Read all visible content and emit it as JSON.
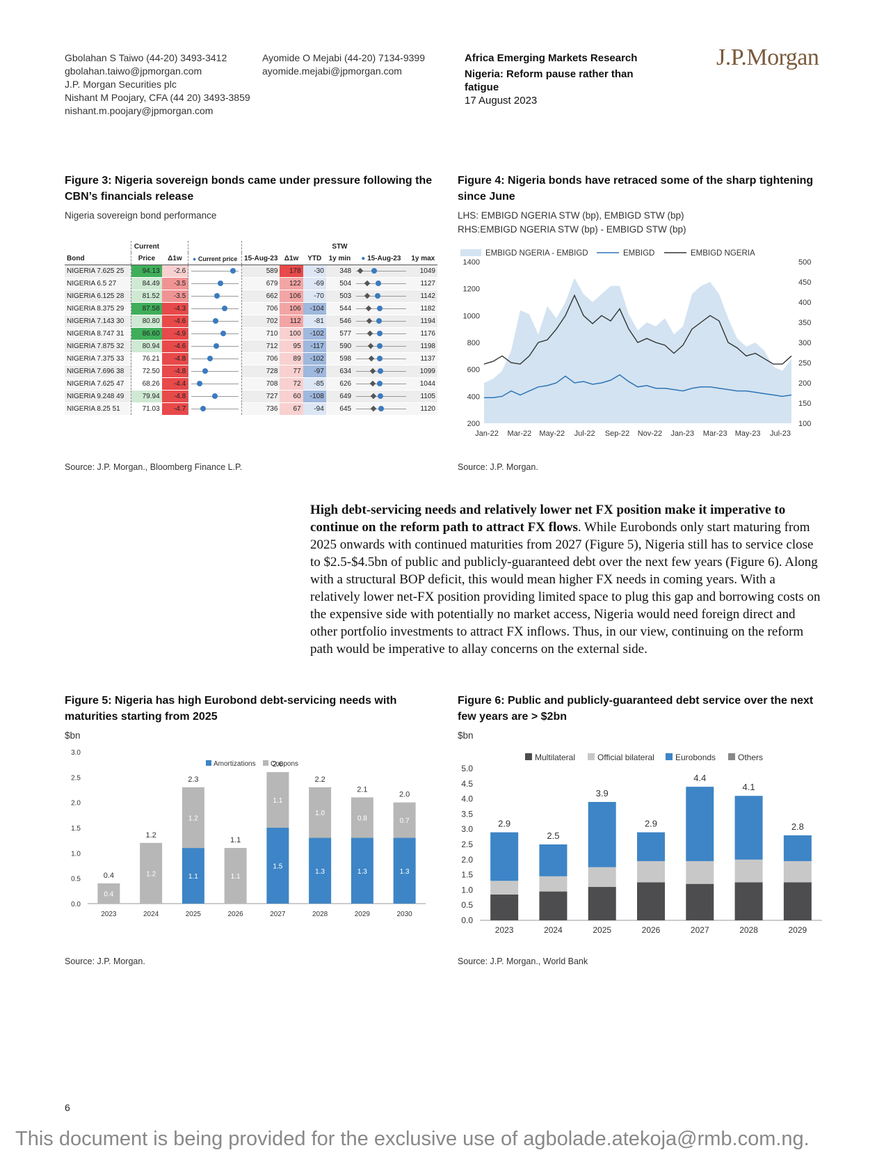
{
  "header": {
    "contacts_left": [
      "Gbolahan S Taiwo  (44-20) 3493-3412",
      "gbolahan.taiwo@jpmorgan.com",
      "J.P. Morgan Securities plc",
      "Nishant M Poojary, CFA  (44 20) 3493-3859",
      "nishant.m.poojary@jpmorgan.com"
    ],
    "contacts_mid": [
      "Ayomide O Mejabi  (44-20) 7134-9399",
      "ayomide.mejabi@jpmorgan.com"
    ],
    "research_title": "Africa Emerging Markets Research",
    "report_title": "Nigeria: Reform pause rather than fatigue",
    "date": "17 August 2023",
    "logo": "J.P.Morgan"
  },
  "fig3": {
    "title": "Figure 3: Nigeria sovereign bonds came under pressure following the CBN’s financials release",
    "subtitle": "Nigeria sovereign bond performance",
    "source": "Source: J.P. Morgan., Bloomberg Finance L.P.",
    "headers": {
      "bond": "Bond",
      "current": "Current",
      "price": "Price",
      "d1w": "Δ1w",
      "current_price": "Current price",
      "stw": "STW",
      "date": "15-Aug-23",
      "d1w_stw": "Δ1w",
      "ytd": "YTD",
      "min": "1y min",
      "dot_label": "15-Aug-23",
      "max": "1y max"
    },
    "rows": [
      {
        "bond": "NIGERIA 7.625 25",
        "price": "94.13",
        "d1w": "-2.6",
        "stw": "589",
        "dstw": "178",
        "ytd": "-30",
        "min": "348",
        "max": "1049"
      },
      {
        "bond": "NIGERIA 6.5 27",
        "price": "84.49",
        "d1w": "-3.5",
        "stw": "679",
        "dstw": "122",
        "ytd": "-69",
        "min": "504",
        "max": "1127"
      },
      {
        "bond": "NIGERIA 6.125 28",
        "price": "81.52",
        "d1w": "-3.5",
        "stw": "662",
        "dstw": "106",
        "ytd": "-70",
        "min": "503",
        "max": "1142"
      },
      {
        "bond": "NIGERIA 8.375 29",
        "price": "87.58",
        "d1w": "-4.3",
        "stw": "706",
        "dstw": "106",
        "ytd": "-104",
        "min": "544",
        "max": "1182"
      },
      {
        "bond": "NIGERIA 7.143 30",
        "price": "80.80",
        "d1w": "-4.6",
        "stw": "702",
        "dstw": "112",
        "ytd": "-81",
        "min": "546",
        "max": "1194"
      },
      {
        "bond": "NIGERIA 8.747 31",
        "price": "86.60",
        "d1w": "-4.9",
        "stw": "710",
        "dstw": "100",
        "ytd": "-102",
        "min": "577",
        "max": "1176"
      },
      {
        "bond": "NIGERIA 7.875 32",
        "price": "80.94",
        "d1w": "-4.6",
        "stw": "712",
        "dstw": "95",
        "ytd": "-117",
        "min": "590",
        "max": "1198"
      },
      {
        "bond": "NIGERIA 7.375 33",
        "price": "76.21",
        "d1w": "-4.8",
        "stw": "706",
        "dstw": "89",
        "ytd": "-102",
        "min": "598",
        "max": "1137"
      },
      {
        "bond": "NIGERIA 7.696 38",
        "price": "72.50",
        "d1w": "-4.8",
        "stw": "728",
        "dstw": "77",
        "ytd": "-97",
        "min": "634",
        "max": "1099"
      },
      {
        "bond": "NIGERIA 7.625 47",
        "price": "68.26",
        "d1w": "-4.4",
        "stw": "708",
        "dstw": "72",
        "ytd": "-85",
        "min": "626",
        "max": "1044"
      },
      {
        "bond": "NIGERIA 9.248 49",
        "price": "79.94",
        "d1w": "-4.8",
        "stw": "727",
        "dstw": "60",
        "ytd": "-108",
        "min": "649",
        "max": "1105"
      },
      {
        "bond": "NIGERIA 8.25 51",
        "price": "71.03",
        "d1w": "-4.7",
        "stw": "736",
        "dstw": "67",
        "ytd": "-94",
        "min": "645",
        "max": "1120"
      }
    ],
    "colors": {
      "green_dark": "#3fae5a",
      "green_light": "#cfe9d3",
      "red_dark": "#e8494a",
      "red_light": "#f8d0d0",
      "blue_cell": "#9fb8dd",
      "blue_light": "#dde6f4",
      "dot": "#3a7bbf",
      "diamond": "#555555"
    }
  },
  "fig4": {
    "title": "Figure 4: Nigeria bonds have retraced some of the sharp tightening since June",
    "subtitle1": "LHS: EMBIGD NGERIA STW (bp), EMBIGD STW (bp)",
    "subtitle2": "RHS:EMBIGD NGERIA STW (bp) - EMBIGD STW (bp)",
    "source": "Source: J.P. Morgan.",
    "chart_data": {
      "type": "line",
      "legend": [
        "EMBIGD NGERIA - EMBIGD",
        "EMBIGD",
        "EMBIGD NGERIA"
      ],
      "x_ticks": [
        "Jan-22",
        "Mar-22",
        "May-22",
        "Jul-22",
        "Sep-22",
        "Nov-22",
        "Jan-23",
        "Mar-23",
        "May-23",
        "Jul-23"
      ],
      "y_left_ticks": [
        "1400",
        "1200",
        "1000",
        "800",
        "600",
        "400",
        "200"
      ],
      "y_right_ticks": [
        "500",
        "450",
        "400",
        "350",
        "300",
        "250",
        "200",
        "150",
        "100"
      ],
      "ylim_left": [
        200,
        1400
      ],
      "ylim_right": [
        100,
        500
      ],
      "embigd_ngeria": [
        640,
        660,
        700,
        650,
        640,
        700,
        800,
        820,
        900,
        1000,
        1150,
        1000,
        940,
        1000,
        960,
        1050,
        900,
        800,
        830,
        800,
        780,
        720,
        780,
        900,
        950,
        1000,
        960,
        800,
        760,
        700,
        720,
        680,
        640,
        640,
        700
      ],
      "embigd": [
        390,
        390,
        400,
        440,
        410,
        440,
        470,
        480,
        500,
        550,
        500,
        510,
        490,
        500,
        520,
        560,
        510,
        470,
        480,
        460,
        460,
        450,
        440,
        460,
        470,
        470,
        460,
        450,
        440,
        440,
        430,
        420,
        410,
        400,
        410
      ],
      "spread": [
        200,
        210,
        230,
        280,
        380,
        370,
        320,
        390,
        360,
        400,
        460,
        420,
        400,
        420,
        440,
        440,
        370,
        330,
        350,
        340,
        360,
        320,
        340,
        420,
        440,
        450,
        420,
        360,
        310,
        290,
        300,
        280,
        240,
        230,
        260
      ],
      "colors": {
        "area": "#d3e3f1",
        "embigd": "#2e75b6",
        "ngeria": "#333333"
      }
    }
  },
  "body": {
    "lead": "High debt-servicing needs and relatively lower net FX position make it imperative to continue on the reform path to attract FX flows",
    "text": ". While Eurobonds only start maturing from 2025 onwards with continued maturities from 2027 (Figure 5), Nigeria still has to service close to $2.5-$4.5bn of public and publicly-guaranteed debt over the next few years (Figure 6). Along with a structural BOP deficit, this would mean higher FX needs in coming years. With a relatively lower net-FX position providing limited space to plug this gap and borrowing costs on the expensive side with potentially no market access, Nigeria would need foreign direct and other portfolio investments to attract FX inflows. Thus, in our view, continuing on the reform path would be imperative to allay concerns on the external side."
  },
  "fig5": {
    "title": "Figure 5: Nigeria has high Eurobond debt-servicing needs with maturities starting from 2025",
    "unit": "$bn",
    "source": "Source: J.P. Morgan.",
    "chart_data": {
      "type": "bar",
      "stacked": true,
      "categories": [
        "2023",
        "2024",
        "2025",
        "2026",
        "2027",
        "2028",
        "2029",
        "2030"
      ],
      "series": [
        {
          "name": "Amortizations",
          "values": [
            0.0,
            0.0,
            1.1,
            0.0,
            1.5,
            1.3,
            1.3,
            1.3
          ],
          "labels": [
            "",
            "0.0",
            "1.1",
            "0.0",
            "1.5",
            "1.3",
            "1.3",
            "1.3"
          ],
          "color": "#3d85c6"
        },
        {
          "name": "Coupons",
          "values": [
            0.4,
            1.2,
            1.2,
            1.1,
            1.1,
            1.0,
            0.8,
            0.7
          ],
          "labels": [
            "0.4",
            "1.2",
            "1.2",
            "1.1",
            "1.1",
            "1.0",
            "0.8",
            "0.7"
          ],
          "color": "#b7b7b7"
        }
      ],
      "totals": [
        "0.4",
        "1.2",
        "2.3",
        "1.1",
        "2.6",
        "2.2",
        "2.1",
        "2.0"
      ],
      "y_ticks": [
        "0.0",
        "0.5",
        "1.0",
        "1.5",
        "2.0",
        "2.5",
        "3.0"
      ],
      "ylim": [
        0,
        3.0
      ]
    }
  },
  "fig6": {
    "title": "Figure 6: Public and publicly-guaranteed debt service over the next few years are > $2bn",
    "unit": "$bn",
    "source": "Source: J.P. Morgan., World Bank",
    "chart_data": {
      "type": "bar",
      "stacked": true,
      "categories": [
        "2023",
        "2024",
        "2025",
        "2026",
        "2027",
        "2028",
        "2029"
      ],
      "series": [
        {
          "name": "Multilateral",
          "values": [
            0.85,
            0.95,
            1.1,
            1.25,
            1.2,
            1.25,
            1.25
          ],
          "color": "#4d4d4f"
        },
        {
          "name": "Official bilateral",
          "values": [
            0.45,
            0.5,
            0.65,
            0.7,
            0.75,
            0.75,
            0.7
          ],
          "color": "#c8c8c8"
        },
        {
          "name": "Eurobonds",
          "values": [
            1.6,
            1.05,
            2.15,
            0.95,
            2.45,
            2.1,
            0.85
          ],
          "color": "#3d85c6"
        },
        {
          "name": "Others",
          "values": [
            0,
            0,
            0,
            0,
            0,
            0,
            0
          ],
          "color": "#888888"
        }
      ],
      "totals": [
        "2.9",
        "2.5",
        "3.9",
        "2.9",
        "4.4",
        "4.1",
        "2.8"
      ],
      "y_ticks": [
        "0.0",
        "0.5",
        "1.0",
        "1.5",
        "2.0",
        "2.5",
        "3.0",
        "3.5",
        "4.0",
        "4.5",
        "5.0"
      ],
      "ylim": [
        0,
        5.0
      ]
    }
  },
  "page_number": "6",
  "footer_note": "This document is being provided for the exclusive use of agbolade.atekoja@rmb.com.ng."
}
